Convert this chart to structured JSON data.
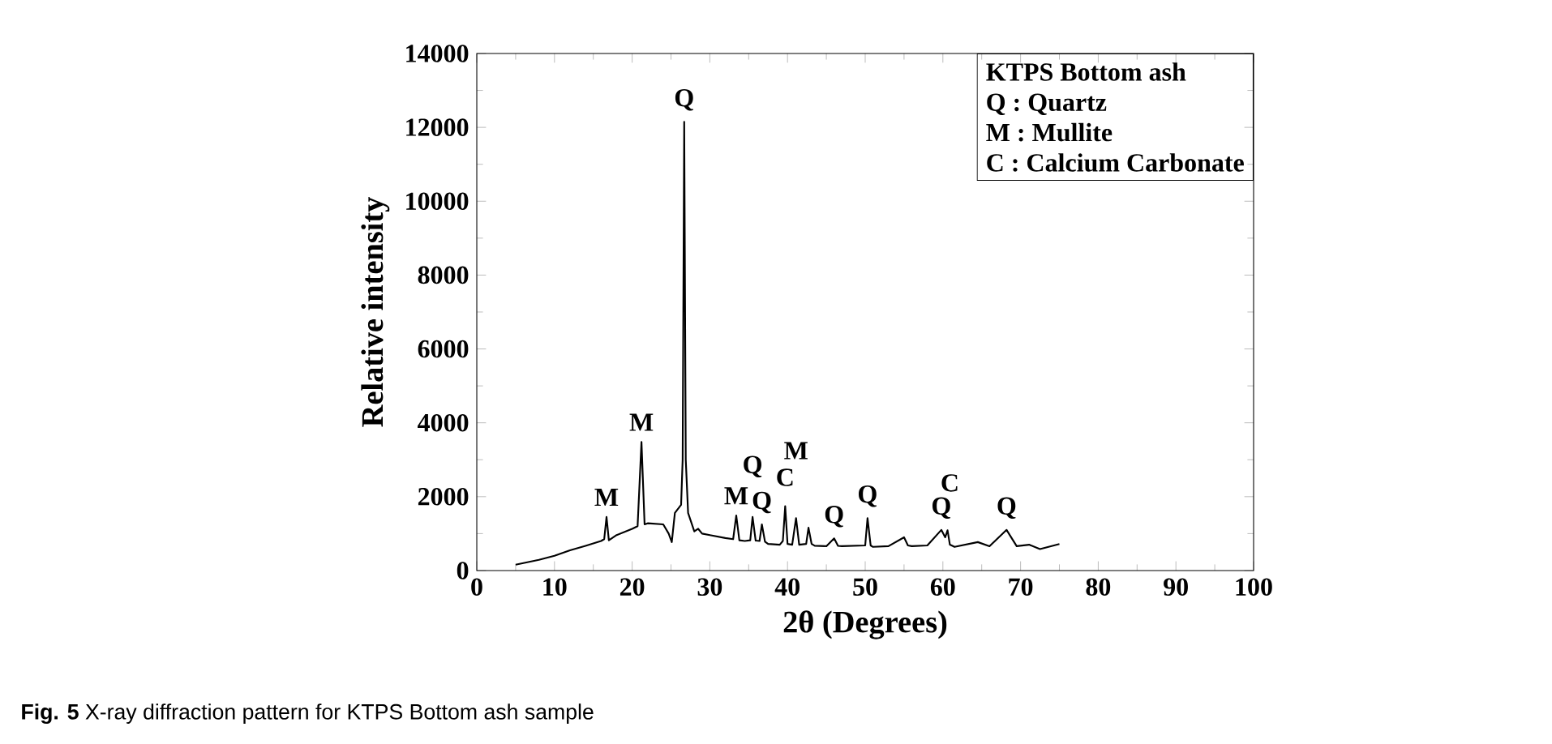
{
  "chart_data": {
    "type": "line",
    "xlabel": "2θ (Degrees)",
    "ylabel": "Relative intensity",
    "xlim": [
      0,
      100
    ],
    "ylim": [
      0,
      14000
    ],
    "xticks": [
      0,
      10,
      20,
      30,
      40,
      50,
      60,
      70,
      80,
      90,
      100
    ],
    "yticks": [
      0,
      2000,
      4000,
      6000,
      8000,
      10000,
      12000,
      14000
    ],
    "series": [
      {
        "color": "#000000",
        "x": [
          5,
          8,
          10,
          12,
          14,
          16,
          16.4,
          16.7,
          17,
          18,
          20,
          20.7,
          21.2,
          21.6,
          22,
          24,
          24.7,
          25.1,
          25.5,
          26.3,
          26.5,
          26.7,
          26.9,
          27.2,
          28,
          28.5,
          29,
          30,
          32,
          33,
          33.4,
          33.8,
          34.5,
          35.2,
          35.5,
          35.9,
          36.4,
          36.7,
          37.1,
          37.5,
          39,
          39.4,
          39.7,
          40,
          40.6,
          41.1,
          41.5,
          42.4,
          42.7,
          43.1,
          43.5,
          45,
          46,
          46.5,
          47,
          50,
          50.3,
          50.7,
          51,
          53,
          55,
          55.5,
          56,
          58,
          59.8,
          60.3,
          60.6,
          60.9,
          61.5,
          64.5,
          66,
          68.2,
          69.5,
          71.1,
          72.5,
          75
        ],
        "values": [
          160,
          290,
          400,
          550,
          670,
          800,
          850,
          1450,
          820,
          960,
          1130,
          1200,
          3480,
          1250,
          1280,
          1250,
          1000,
          770,
          1560,
          1780,
          3000,
          12150,
          3000,
          1560,
          1060,
          1130,
          1000,
          960,
          880,
          850,
          1490,
          820,
          800,
          820,
          1450,
          810,
          800,
          1250,
          780,
          720,
          700,
          800,
          1740,
          720,
          700,
          1420,
          700,
          720,
          1160,
          720,
          670,
          660,
          870,
          670,
          660,
          680,
          1420,
          680,
          640,
          660,
          900,
          680,
          660,
          680,
          1100,
          900,
          1090,
          700,
          640,
          770,
          660,
          1100,
          660,
          700,
          580,
          720
        ]
      }
    ],
    "annotations": [
      "KTPS Bottom ash",
      "Q : Quartz",
      "M : Mullite",
      "C : Calcium Carbonate",
      "**Fig. 5** X-ray diffraction pattern for KTPS Bottom ash sample",
      {
        "text": "M",
        "x": 16.7,
        "y": 1450
      },
      {
        "text": "M",
        "x": 21.2,
        "y": 3480
      },
      {
        "text": "Q",
        "x": 26.7,
        "y": 12150
      },
      {
        "text": "M",
        "x": 33.4,
        "y": 1490
      },
      {
        "text": "Q",
        "x": 35.5,
        "y": 1450
      },
      {
        "text": "Q",
        "x": 36.7,
        "y": 1250
      },
      {
        "text": "C",
        "x": 39.7,
        "y": 1740
      },
      {
        "text": "M",
        "x": 41.1,
        "y": 1420
      },
      {
        "text": "Q",
        "x": 46,
        "y": 870
      },
      {
        "text": "Q",
        "x": 50.3,
        "y": 1420
      },
      {
        "text": "Q",
        "x": 59.8,
        "y": 1100
      },
      {
        "text": "C",
        "x": 60.9,
        "y": 1090
      },
      {
        "text": "Q",
        "x": 68.2,
        "y": 1100
      }
    ]
  }
}
